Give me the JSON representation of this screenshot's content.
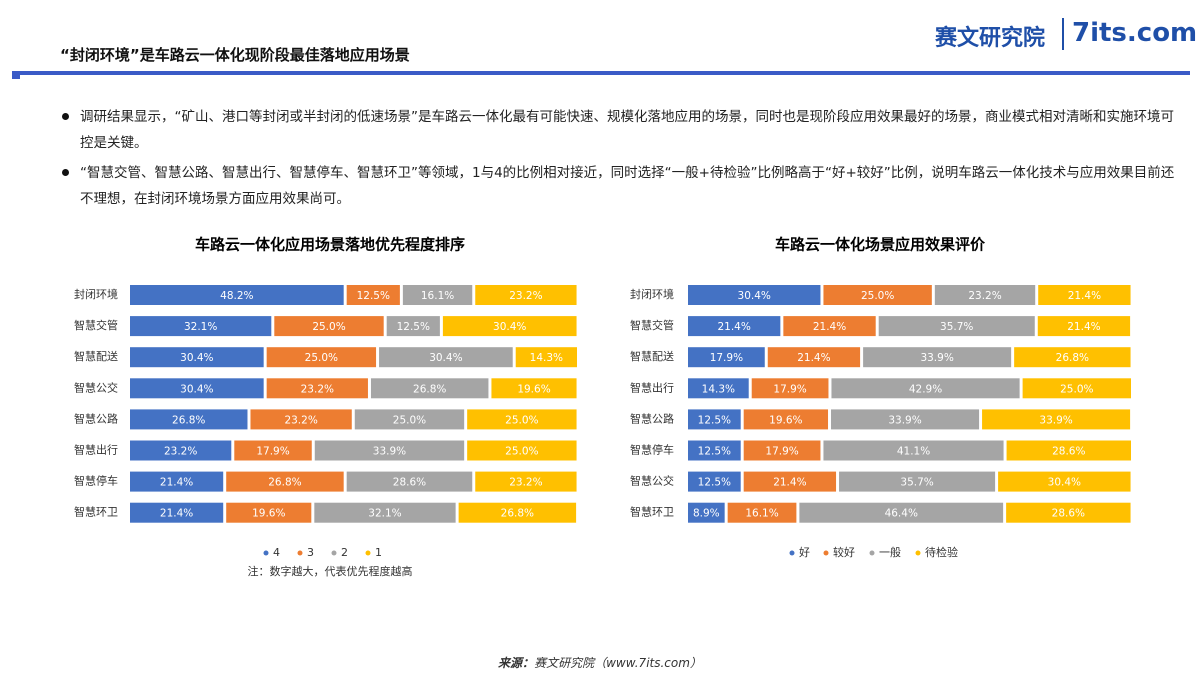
{
  "header": {
    "title": "“封闭环境”是车路云一体化现阶段最佳落地应用场景",
    "logo_cn": "赛文研究院",
    "logo_en": "7its.com"
  },
  "bullets": [
    "调研结果显示，“矿山、港口等封闭或半封闭的低速场景”是车路云一体化最有可能快速、规模化落地应用的场景，同时也是现阶段应用效果最好的场景，商业模式相对清晰和实施环境可控是关键。",
    "“智慧交管、智慧公路、智慧出行、智慧停车、智慧环卫”等领域，1与4的比例相对接近，同时选择“一般+待检验”比例略高于“好+较好”比例，说明车路云一体化技术与应用效果目前还不理想，在封闭环境场景方面应用效果尚可。"
  ],
  "chart_data": [
    {
      "type": "bar",
      "orientation": "horizontal",
      "stacked": true,
      "title": "车路云一体化应用场景落地优先程度排序",
      "categories": [
        "封闭环境",
        "智慧交管",
        "智慧配送",
        "智慧公交",
        "智慧公路",
        "智慧出行",
        "智慧停车",
        "智慧环卫"
      ],
      "series": [
        {
          "name": "4",
          "color": "#4472c4",
          "values": [
            48.2,
            32.1,
            30.4,
            30.4,
            26.8,
            23.2,
            21.4,
            21.4
          ],
          "value_labels": [
            "48.2%",
            "32.1%",
            "30.4%",
            "30.4%",
            "26.8%",
            "23.2%",
            "21.4%",
            "21.4%"
          ]
        },
        {
          "name": "3",
          "color": "#ed7d31",
          "values": [
            12.5,
            25.0,
            25.0,
            23.2,
            23.2,
            17.9,
            26.8,
            19.6
          ],
          "value_labels": [
            "12.5%",
            "25.0%",
            "25.0%",
            "23.2%",
            "23.2%",
            "17.9%",
            "26.8%",
            "19.6%"
          ]
        },
        {
          "name": "2",
          "color": "#a5a5a5",
          "values": [
            16.1,
            12.5,
            30.4,
            26.8,
            25.0,
            33.9,
            28.6,
            32.1
          ],
          "value_labels": [
            "16.1%",
            "12.5%",
            "30.4%",
            "26.8%",
            "25.0%",
            "33.9%",
            "28.6%",
            "32.1%"
          ]
        },
        {
          "name": "1",
          "color": "#ffc000",
          "values": [
            23.2,
            30.4,
            14.3,
            19.6,
            25.0,
            25.0,
            23.2,
            26.8
          ],
          "value_labels": [
            "23.2%",
            "30.4%",
            "14.3%",
            "19.6%",
            "25.0%",
            "25.0%",
            "23.2%",
            "26.8%"
          ]
        }
      ],
      "legend": "bottom",
      "note": "注：数字越大，代表优先程度越高"
    },
    {
      "type": "bar",
      "orientation": "horizontal",
      "stacked": true,
      "title": "车路云一体化场景应用效果评价",
      "categories": [
        "封闭环境",
        "智慧交管",
        "智慧配送",
        "智慧出行",
        "智慧公路",
        "智慧停车",
        "智慧公交",
        "智慧环卫"
      ],
      "series": [
        {
          "name": "好",
          "color": "#4472c4",
          "values": [
            30.4,
            21.4,
            17.9,
            14.3,
            12.5,
            12.5,
            12.5,
            8.9
          ],
          "value_labels": [
            "30.4%",
            "21.4%",
            "17.9%",
            "14.3%",
            "12.5%",
            "12.5%",
            "12.5%",
            "8.9%"
          ]
        },
        {
          "name": "较好",
          "color": "#ed7d31",
          "values": [
            25.0,
            21.4,
            21.4,
            17.9,
            19.6,
            17.9,
            21.4,
            16.1
          ],
          "value_labels": [
            "25.0%",
            "21.4%",
            "21.4%",
            "17.9%",
            "19.6%",
            "17.9%",
            "21.4%",
            "16.1%"
          ]
        },
        {
          "name": "一般",
          "color": "#a5a5a5",
          "values": [
            23.2,
            35.7,
            33.9,
            42.9,
            33.9,
            41.1,
            35.7,
            46.4
          ],
          "value_labels": [
            "23.2%",
            "35.7%",
            "33.9%",
            "42.9%",
            "33.9%",
            "41.1%",
            "35.7%",
            "46.4%"
          ]
        },
        {
          "name": "待检验",
          "color": "#ffc000",
          "values": [
            21.4,
            21.4,
            26.8,
            25.0,
            33.9,
            28.6,
            30.4,
            28.6
          ],
          "value_labels": [
            "21.4%",
            "21.4%",
            "26.8%",
            "25.0%",
            "33.9%",
            "28.6%",
            "30.4%",
            "28.6%"
          ]
        }
      ],
      "legend": "bottom"
    }
  ],
  "source": {
    "label": "来源：",
    "text": "赛文研究院（www.7its.com）"
  }
}
